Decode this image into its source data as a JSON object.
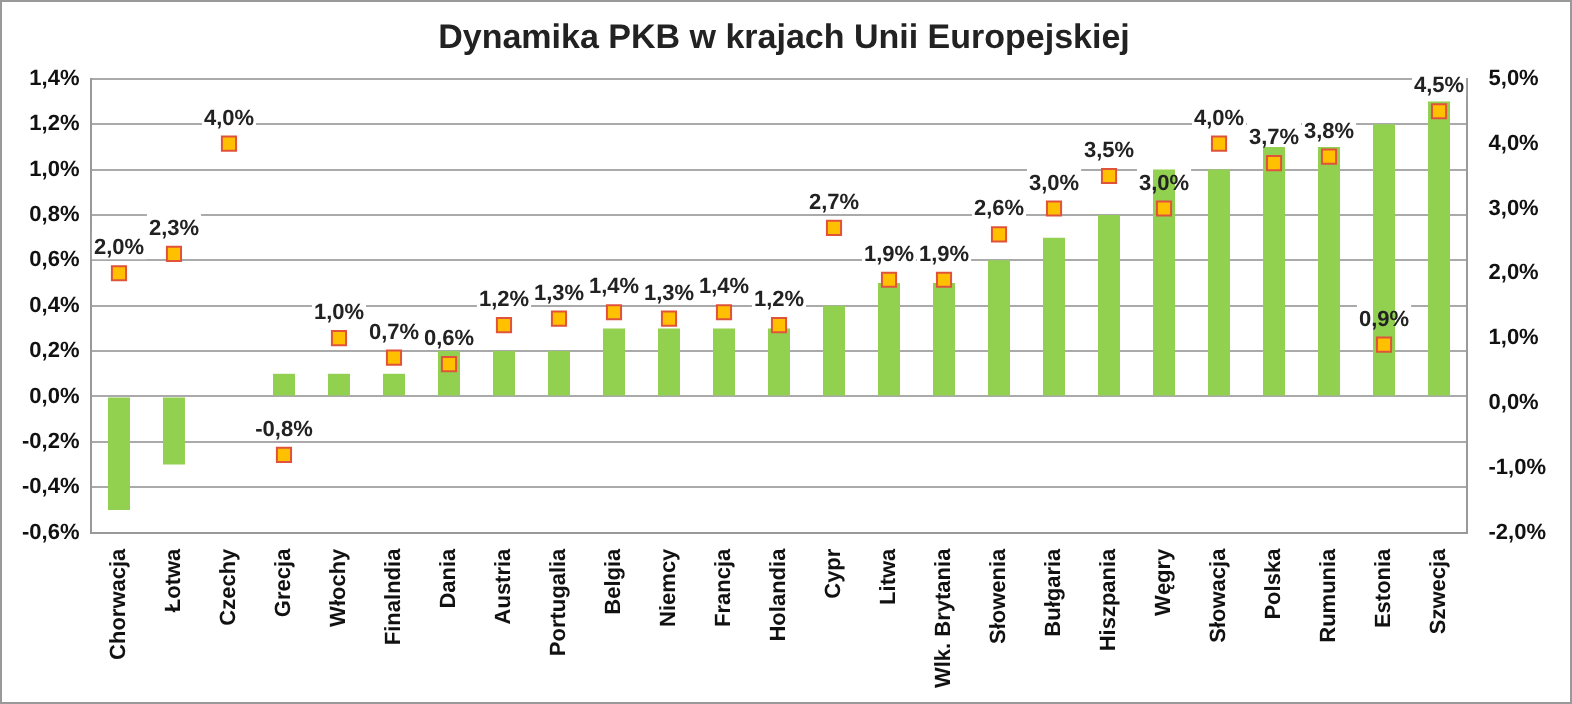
{
  "chart_data": {
    "type": "bar",
    "title": "Dynamika PKB w krajach Unii Europejskiej",
    "categories": [
      "Chorwacja",
      "Łotwa",
      "Czechy",
      "Grecja",
      "Włochy",
      "Finalndia",
      "Dania",
      "Austria",
      "Portugalia",
      "Belgia",
      "Niemcy",
      "Francja",
      "Holandia",
      "Cypr",
      "Litwa",
      "Wlk. Brytania",
      "Słowenia",
      "Bułgaria",
      "Hiszpania",
      "Węgry",
      "Słowacja",
      "Polska",
      "Rumunia",
      "Estonia",
      "Szwecja"
    ],
    "series": [
      {
        "color": "#92d050",
        "values": [
          -0.5,
          -0.3,
          0,
          0.1,
          0.1,
          0.1,
          0.2,
          0.2,
          0.2,
          0.3,
          0.3,
          0.3,
          0.3,
          0.4,
          0.5,
          0.5,
          0.6,
          0.7,
          0.8,
          1.0,
          1.0,
          1.1,
          1.1,
          1.2,
          1.3
        ]
      },
      {
        "type": "scatter",
        "axis": "y2",
        "color": "#ffc000",
        "marker": "square",
        "values": [
          2.0,
          2.3,
          4.0,
          -0.8,
          1.0,
          0.7,
          0.6,
          1.2,
          1.3,
          1.4,
          1.3,
          1.4,
          1.2,
          2.7,
          1.9,
          1.9,
          2.6,
          3.0,
          3.5,
          3.0,
          4.0,
          3.7,
          3.8,
          0.9,
          4.5
        ],
        "value_labels": [
          "2,0%",
          "2,3%",
          "4,0%",
          "-0,8%",
          "1,0%",
          "0,7%",
          "0,6%",
          "1,2%",
          "1,3%",
          "1,4%",
          "1,3%",
          "1,4%",
          "1,2%",
          "2,7%",
          "1,9%",
          "1,9%",
          "2,6%",
          "3,0%",
          "3,5%",
          "3,0%",
          "4,0%",
          "3,7%",
          "3,8%",
          "0,9%",
          "4,5%"
        ]
      }
    ],
    "ylim": [
      -0.6,
      1.4
    ],
    "yticks": [
      {
        "value": -0.6,
        "label": "-0,6%"
      },
      {
        "value": -0.4,
        "label": "-0,4%"
      },
      {
        "value": -0.2,
        "label": "-0,2%"
      },
      {
        "value": 0,
        "label": "0,0%"
      },
      {
        "value": 0.2,
        "label": "0,2%"
      },
      {
        "value": 0.4,
        "label": "0,4%"
      },
      {
        "value": 0.6,
        "label": "0,6%"
      },
      {
        "value": 0.8,
        "label": "0,8%"
      },
      {
        "value": 1.0,
        "label": "1,0%"
      },
      {
        "value": 1.2,
        "label": "1,2%"
      },
      {
        "value": 1.4,
        "label": "1,4%"
      }
    ],
    "y2lim": [
      -2,
      5
    ],
    "y2ticks": [
      {
        "value": -2,
        "label": "-2,0%"
      },
      {
        "value": -1,
        "label": "-1,0%"
      },
      {
        "value": 0,
        "label": "0,0%"
      },
      {
        "value": 1,
        "label": "1,0%"
      },
      {
        "value": 2,
        "label": "2,0%"
      },
      {
        "value": 3,
        "label": "3,0%"
      },
      {
        "value": 4,
        "label": "4,0%"
      },
      {
        "value": 5,
        "label": "5,0%"
      }
    ],
    "grid": "y",
    "legend": false
  }
}
